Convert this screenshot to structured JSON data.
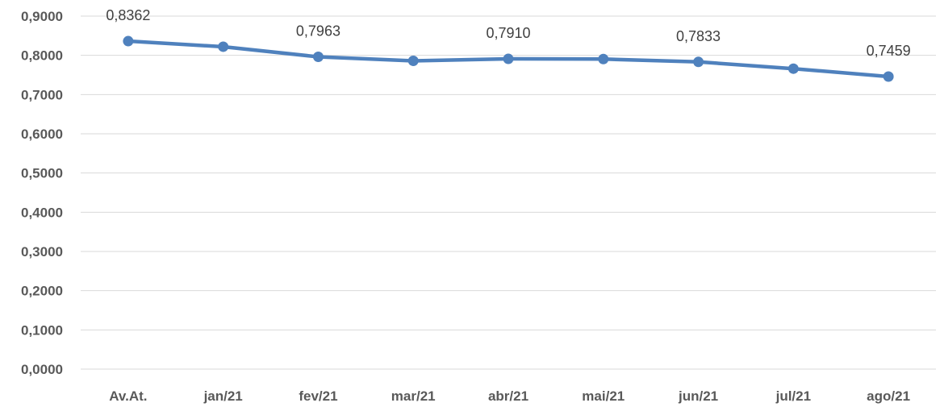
{
  "chart_data": {
    "type": "line",
    "title": "",
    "xlabel": "",
    "ylabel": "",
    "categories": [
      "Av.At.",
      "jan/21",
      "fev/21",
      "mar/21",
      "abr/21",
      "mai/21",
      "jun/21",
      "jul/21",
      "ago/21"
    ],
    "series": [
      {
        "values": [
          0.8362,
          0.822,
          0.7963,
          0.786,
          0.791,
          0.7905,
          0.7833,
          0.766,
          0.7459
        ],
        "color": "#4f81bd"
      }
    ],
    "data_labels": [
      {
        "index": 0,
        "text": "0,8362"
      },
      {
        "index": 2,
        "text": "0,7963"
      },
      {
        "index": 4,
        "text": "0,7910"
      },
      {
        "index": 6,
        "text": "0,7833"
      },
      {
        "index": 8,
        "text": "0,7459"
      }
    ],
    "y_ticks": [
      "0,0000",
      "0,1000",
      "0,2000",
      "0,3000",
      "0,4000",
      "0,5000",
      "0,6000",
      "0,7000",
      "0,8000",
      "0,9000"
    ],
    "ylim": [
      0,
      0.9
    ],
    "grid": true,
    "legend": "none"
  }
}
